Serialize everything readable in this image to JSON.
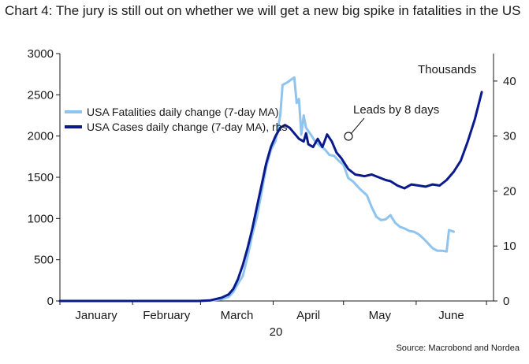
{
  "chart_data": {
    "type": "line",
    "title": "Chart 4: The jury is still out on whether we will get a new big spike in fatalities in the US",
    "source": "Source: Macrobond and Nordea",
    "units_label": "Thousands",
    "annotation": "Leads by 8 days",
    "year_label": "20",
    "x_labels": [
      "January",
      "February",
      "March",
      "April",
      "May",
      "June"
    ],
    "y_left": {
      "ylim": [
        0,
        3000
      ],
      "ticks": [
        "0",
        "500",
        "1000",
        "1500",
        "2000",
        "2500",
        "3000"
      ]
    },
    "y_right": {
      "ylim": [
        0,
        45
      ],
      "ticks": [
        "0",
        "10",
        "20",
        "30",
        "40"
      ]
    },
    "legend": {
      "placement": "top-left"
    },
    "colors": {
      "fatalities": "#8ec4ee",
      "cases": "#0a1a8c"
    },
    "series": [
      {
        "name": "USA Fatalities daily change (7-day MA)",
        "axis": "left",
        "points": [
          [
            "2020-01-01",
            0
          ],
          [
            "2020-02-01",
            0
          ],
          [
            "2020-02-29",
            0
          ],
          [
            "2020-03-05",
            5
          ],
          [
            "2020-03-10",
            20
          ],
          [
            "2020-03-13",
            50
          ],
          [
            "2020-03-15",
            110
          ],
          [
            "2020-03-17",
            210
          ],
          [
            "2020-03-19",
            300
          ],
          [
            "2020-03-21",
            530
          ],
          [
            "2020-03-23",
            790
          ],
          [
            "2020-03-25",
            1010
          ],
          [
            "2020-03-27",
            1310
          ],
          [
            "2020-03-29",
            1620
          ],
          [
            "2020-03-31",
            1830
          ],
          [
            "2020-04-02",
            1940
          ],
          [
            "2020-04-04",
            2250
          ],
          [
            "2020-04-05",
            2620
          ],
          [
            "2020-04-07",
            2650
          ],
          [
            "2020-04-09",
            2690
          ],
          [
            "2020-04-10",
            2710
          ],
          [
            "2020-04-11",
            2400
          ],
          [
            "2020-04-12",
            2450
          ],
          [
            "2020-04-13",
            2020
          ],
          [
            "2020-04-14",
            2250
          ],
          [
            "2020-04-15",
            2100
          ],
          [
            "2020-04-17",
            2020
          ],
          [
            "2020-04-19",
            1930
          ],
          [
            "2020-04-21",
            1880
          ],
          [
            "2020-04-23",
            1840
          ],
          [
            "2020-04-25",
            1770
          ],
          [
            "2020-04-27",
            1760
          ],
          [
            "2020-04-29",
            1700
          ],
          [
            "2020-05-01",
            1650
          ],
          [
            "2020-05-03",
            1490
          ],
          [
            "2020-05-05",
            1450
          ],
          [
            "2020-05-08",
            1360
          ],
          [
            "2020-05-11",
            1280
          ],
          [
            "2020-05-13",
            1140
          ],
          [
            "2020-05-15",
            1020
          ],
          [
            "2020-05-17",
            980
          ],
          [
            "2020-05-19",
            990
          ],
          [
            "2020-05-21",
            1040
          ],
          [
            "2020-05-23",
            950
          ],
          [
            "2020-05-25",
            900
          ],
          [
            "2020-05-27",
            880
          ],
          [
            "2020-05-29",
            850
          ],
          [
            "2020-05-31",
            840
          ],
          [
            "2020-06-02",
            810
          ],
          [
            "2020-06-04",
            760
          ],
          [
            "2020-06-06",
            700
          ],
          [
            "2020-06-08",
            640
          ],
          [
            "2020-06-10",
            610
          ],
          [
            "2020-06-12",
            610
          ],
          [
            "2020-06-14",
            600
          ],
          [
            "2020-06-15",
            860
          ],
          [
            "2020-06-17",
            840
          ]
        ]
      },
      {
        "name": "USA Cases daily change (7-day MA), rhs",
        "axis": "right",
        "points": [
          [
            "2020-01-01",
            0
          ],
          [
            "2020-02-01",
            0
          ],
          [
            "2020-02-29",
            0
          ],
          [
            "2020-03-05",
            0.1
          ],
          [
            "2020-03-10",
            0.6
          ],
          [
            "2020-03-13",
            1.2
          ],
          [
            "2020-03-15",
            2.2
          ],
          [
            "2020-03-17",
            4.0
          ],
          [
            "2020-03-19",
            6.5
          ],
          [
            "2020-03-21",
            9.5
          ],
          [
            "2020-03-23",
            13.0
          ],
          [
            "2020-03-25",
            17.0
          ],
          [
            "2020-03-27",
            21.0
          ],
          [
            "2020-03-29",
            25.0
          ],
          [
            "2020-03-31",
            28.0
          ],
          [
            "2020-04-02",
            30.0
          ],
          [
            "2020-04-04",
            31.5
          ],
          [
            "2020-04-06",
            32.0
          ],
          [
            "2020-04-08",
            31.5
          ],
          [
            "2020-04-10",
            30.5
          ],
          [
            "2020-04-12",
            29.5
          ],
          [
            "2020-04-14",
            29.0
          ],
          [
            "2020-04-15",
            30.5
          ],
          [
            "2020-04-16",
            28.5
          ],
          [
            "2020-04-18",
            28.0
          ],
          [
            "2020-04-20",
            29.5
          ],
          [
            "2020-04-22",
            28.0
          ],
          [
            "2020-04-24",
            30.3
          ],
          [
            "2020-04-26",
            29.0
          ],
          [
            "2020-04-28",
            27.0
          ],
          [
            "2020-04-30",
            26.0
          ],
          [
            "2020-05-03",
            24.0
          ],
          [
            "2020-05-06",
            23.0
          ],
          [
            "2020-05-10",
            22.7
          ],
          [
            "2020-05-13",
            23.0
          ],
          [
            "2020-05-16",
            22.5
          ],
          [
            "2020-05-19",
            22.0
          ],
          [
            "2020-05-21",
            21.8
          ],
          [
            "2020-05-24",
            21.0
          ],
          [
            "2020-05-27",
            20.5
          ],
          [
            "2020-05-30",
            21.2
          ],
          [
            "2020-06-02",
            21.0
          ],
          [
            "2020-06-05",
            20.8
          ],
          [
            "2020-06-08",
            21.2
          ],
          [
            "2020-06-11",
            21.0
          ],
          [
            "2020-06-14",
            22.0
          ],
          [
            "2020-06-17",
            23.5
          ],
          [
            "2020-06-20",
            25.5
          ],
          [
            "2020-06-23",
            29.0
          ],
          [
            "2020-06-26",
            33.0
          ],
          [
            "2020-06-29",
            38.0
          ]
        ]
      }
    ]
  }
}
